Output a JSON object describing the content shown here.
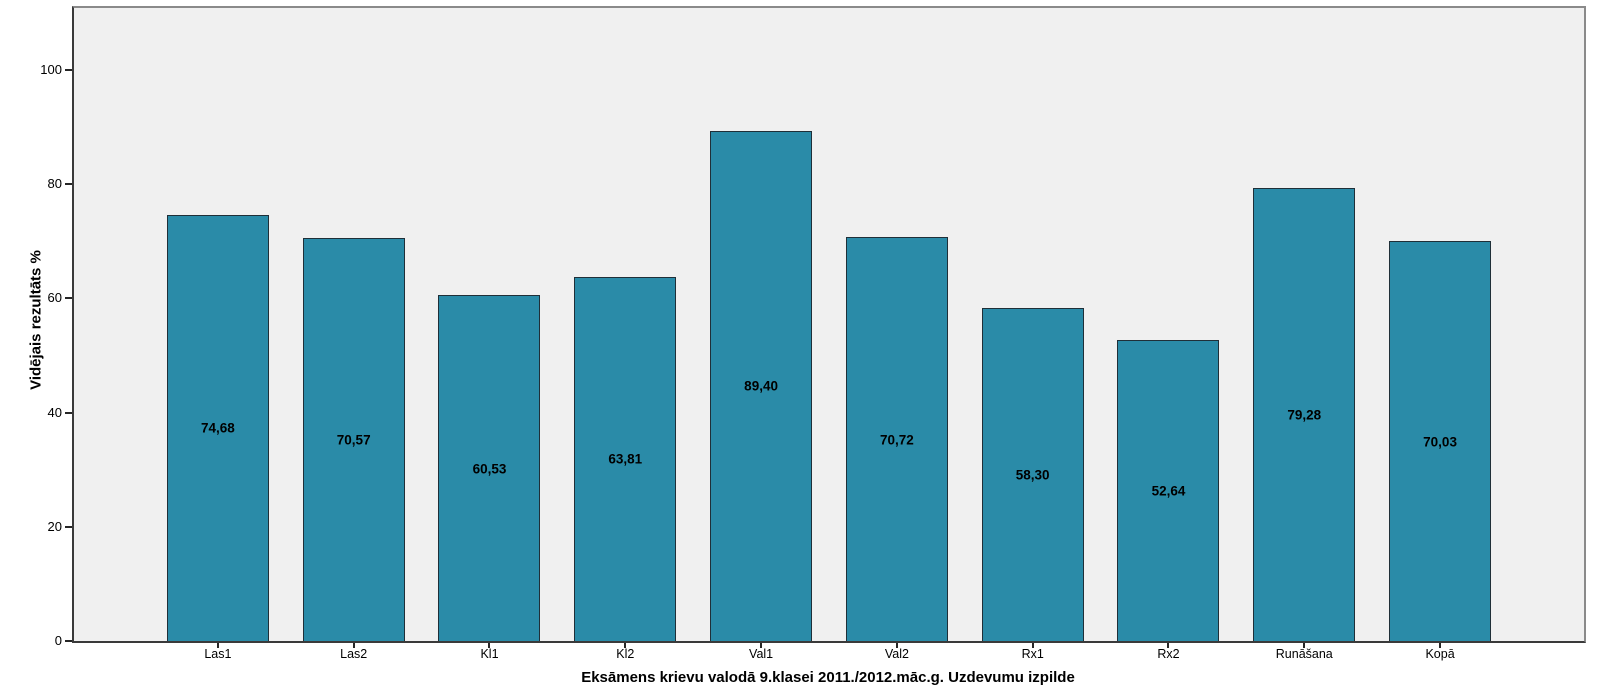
{
  "chart_data": {
    "type": "bar",
    "title": "",
    "xlabel": "Eksāmens krievu valodā 9.klasei 2011./2012.māc.g. Uzdevumu izpilde",
    "ylabel": "Vidējais rezultāts %",
    "categories": [
      "Las1",
      "Las2",
      "Kl1",
      "Kl2",
      "Val1",
      "Val2",
      "Rx1",
      "Rx2",
      "Runāšana",
      "Kopā"
    ],
    "values": [
      74.68,
      70.57,
      60.53,
      63.81,
      89.4,
      70.72,
      58.3,
      52.64,
      79.28,
      70.03
    ],
    "value_labels": [
      "74,68",
      "70,57",
      "60,53",
      "63,81",
      "89,40",
      "70,72",
      "58,30",
      "52,64",
      "79,28",
      "70,03"
    ],
    "yticks": [
      0,
      20,
      40,
      60,
      80,
      100
    ],
    "ylim": [
      0,
      111
    ],
    "grid": false,
    "legend": null,
    "layout": {
      "bars_per_row": 10,
      "value_labels_position": "center-inside"
    },
    "colors": {
      "bar_fill": "#2a8ba8",
      "bar_border": "#1f2f38",
      "plot_bg": "#f0f0f0",
      "page_bg": "#ffffff",
      "frame_border": "#8a8a8a",
      "axis_line": "#3a3a3a",
      "tick_color": "#262626",
      "text_color": "#000000"
    }
  }
}
